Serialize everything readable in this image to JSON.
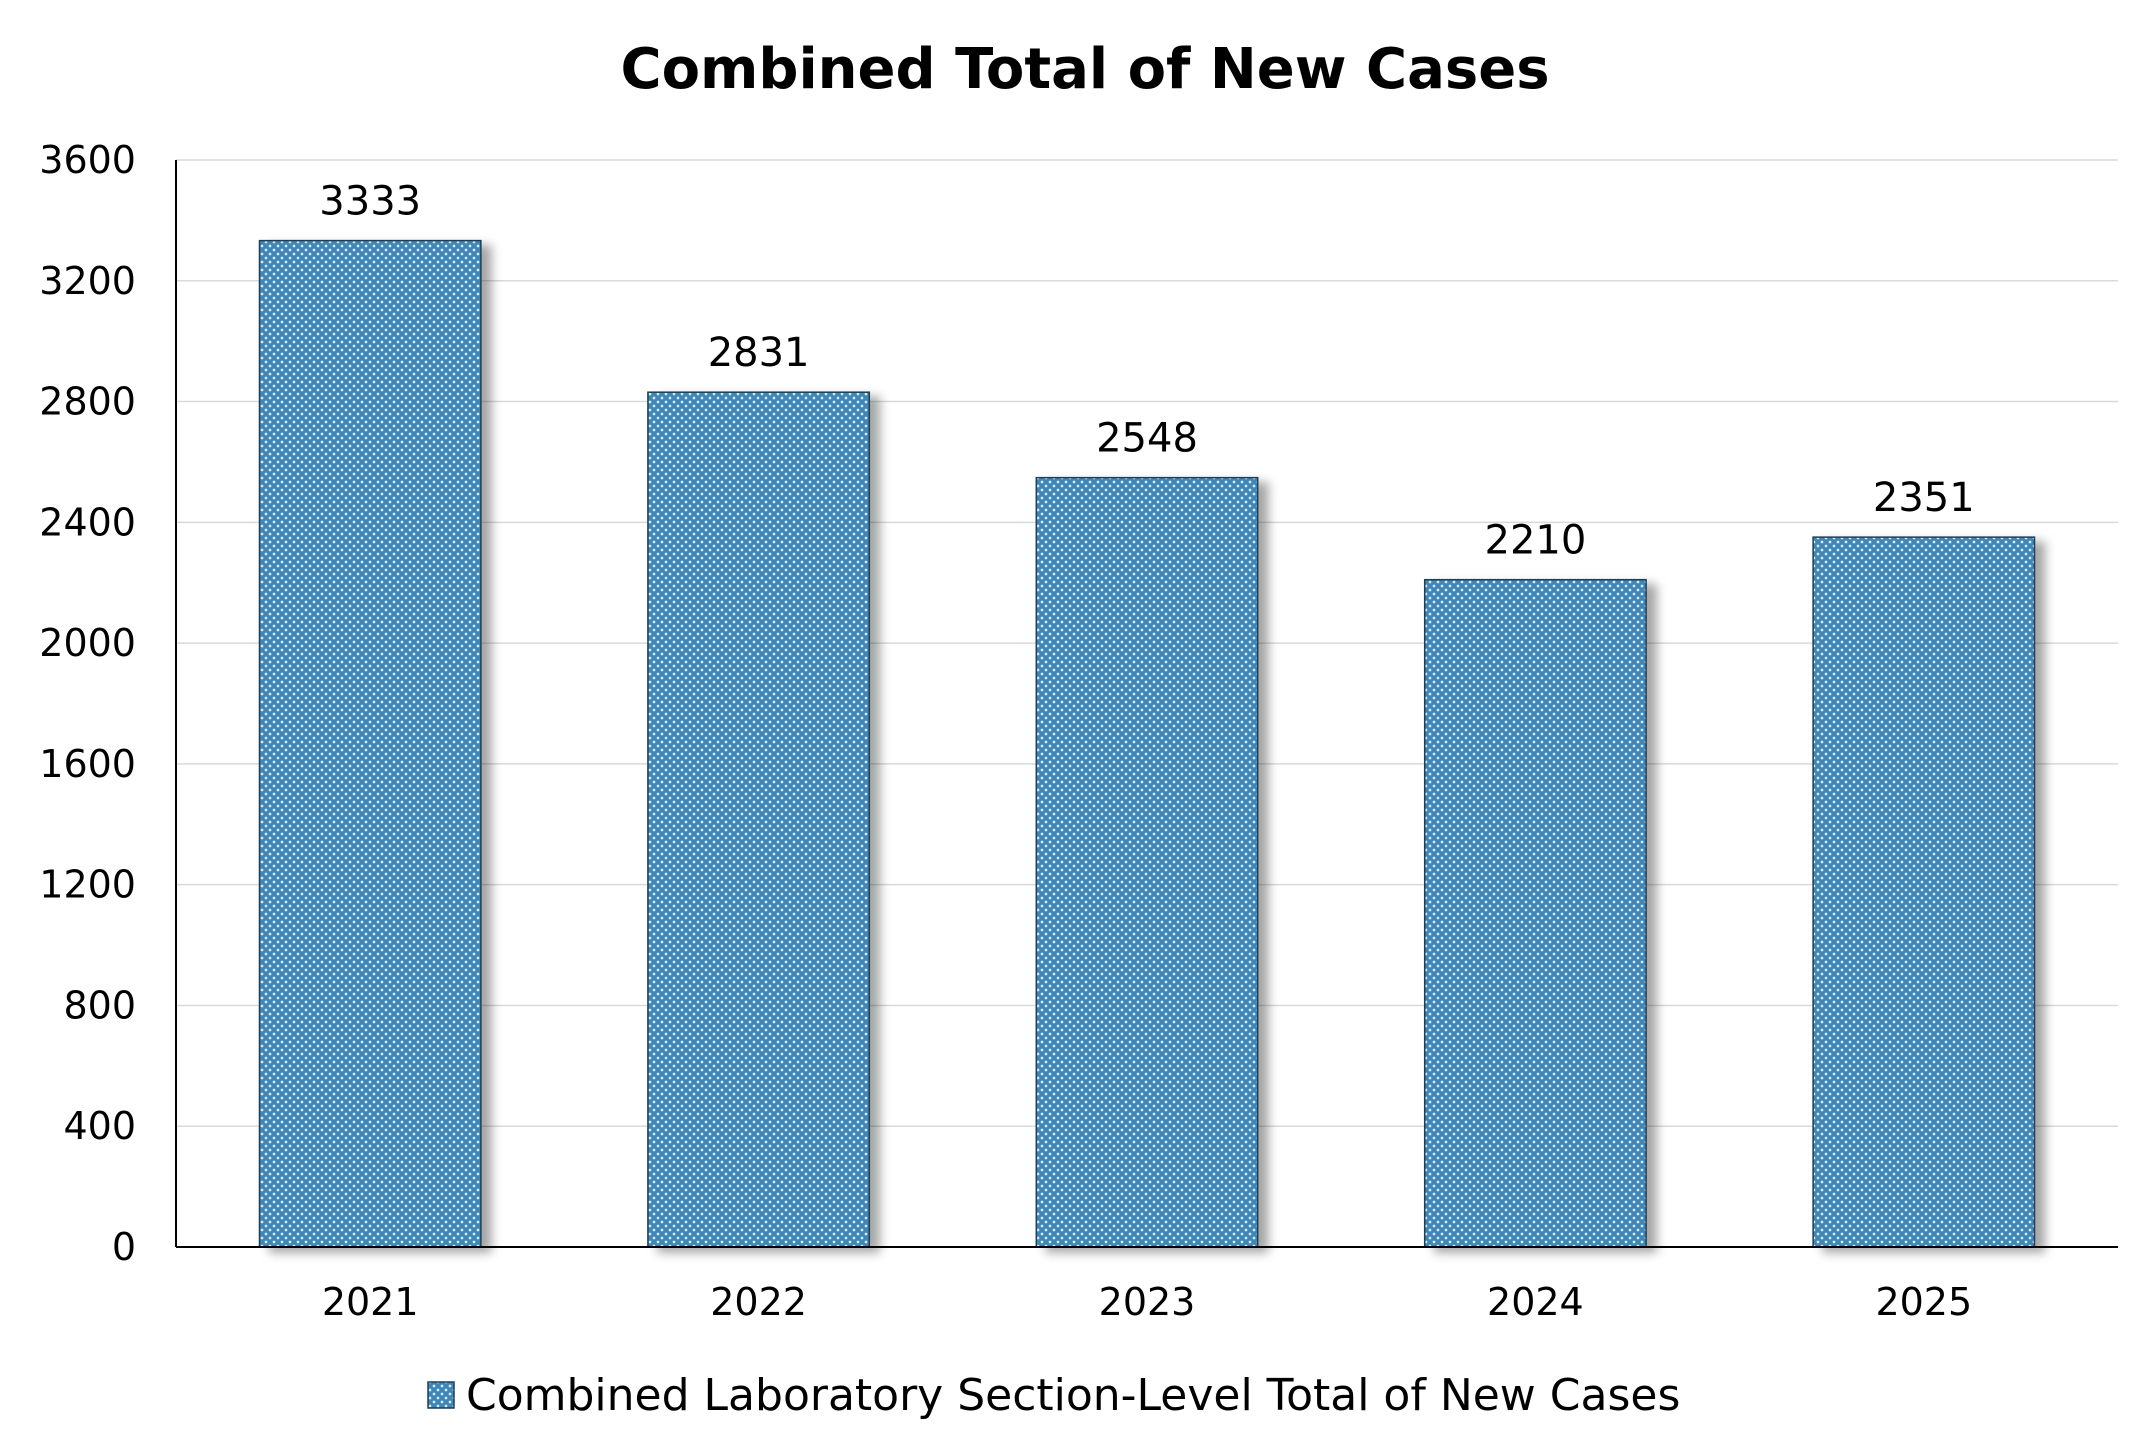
{
  "chart_data": {
    "type": "bar",
    "title": "Combined Total of New Cases",
    "xlabel": "",
    "ylabel": "",
    "categories": [
      "2021",
      "2022",
      "2023",
      "2024",
      "2025"
    ],
    "series": [
      {
        "name": "Combined Laboratory Section-Level Total of New Cases",
        "values": [
          3333,
          2831,
          2548,
          2210,
          2351
        ]
      }
    ],
    "ylim": [
      0,
      3600
    ],
    "yticks": [
      0,
      400,
      800,
      1200,
      1600,
      2000,
      2400,
      2800,
      3200,
      3600
    ],
    "grid": true,
    "legend_position": "bottom-center",
    "bar_color": "#3f87b8",
    "bar_pattern_color": "#d8eaf6",
    "bar_edge_color": "#1f3f55"
  }
}
